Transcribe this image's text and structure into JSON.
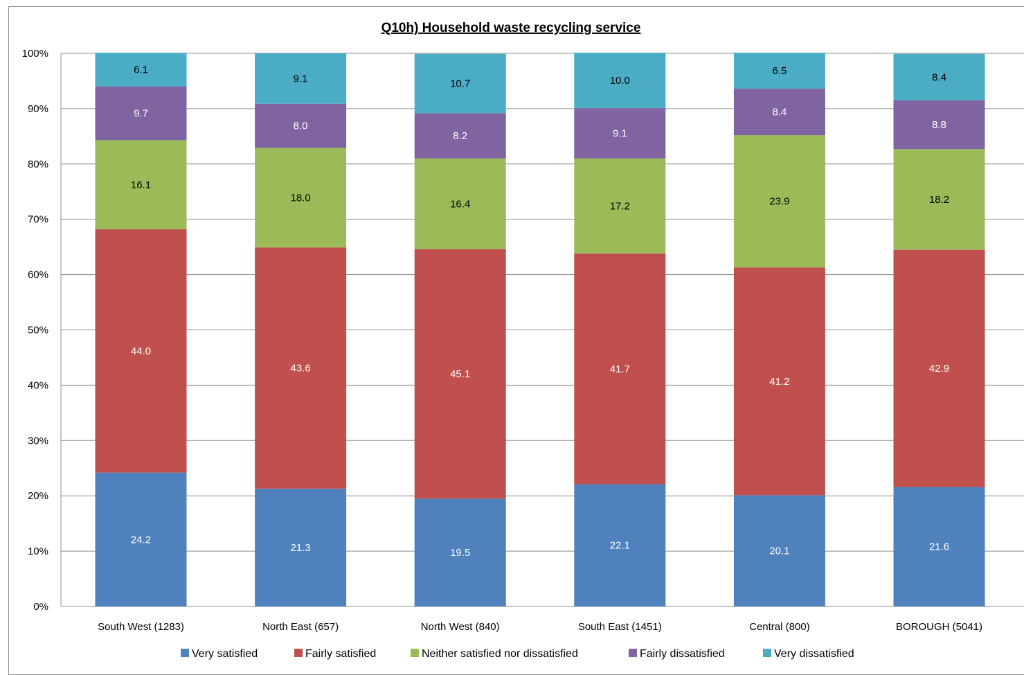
{
  "chart_data": {
    "type": "bar",
    "stacked": true,
    "title": "Q10h) Household waste recycling service",
    "xlabel": "",
    "ylabel": "",
    "ylim": [
      0,
      100
    ],
    "y_ticks": [
      "0%",
      "10%",
      "20%",
      "30%",
      "40%",
      "50%",
      "60%",
      "70%",
      "80%",
      "90%",
      "100%"
    ],
    "grid": true,
    "legend_position": "bottom",
    "categories": [
      "South West (1283)",
      "North East (657)",
      "North West (840)",
      "South East (1451)",
      "Central (800)",
      "BOROUGH (5041)"
    ],
    "series": [
      {
        "name": "Very satisfied",
        "color": "#4f81bd",
        "label_color": "#ffffff",
        "values": [
          24.2,
          21.3,
          19.5,
          22.1,
          20.1,
          21.6
        ]
      },
      {
        "name": "Fairly satisfied",
        "color": "#c0504d",
        "label_color": "#ffffff",
        "values": [
          44.0,
          43.6,
          45.1,
          41.7,
          41.2,
          42.9
        ]
      },
      {
        "name": "Neither satisfied nor dissatisfied",
        "color": "#9bbb59",
        "label_color": "#000000",
        "values": [
          16.1,
          18.0,
          16.4,
          17.2,
          23.9,
          18.2
        ]
      },
      {
        "name": "Fairly dissatisfied",
        "color": "#8064a2",
        "label_color": "#ffffff",
        "values": [
          9.7,
          8.0,
          8.2,
          9.1,
          8.4,
          8.8
        ]
      },
      {
        "name": "Very dissatisfied",
        "color": "#4bacc6",
        "label_color": "#000000",
        "values": [
          6.1,
          9.1,
          10.7,
          10.0,
          6.5,
          8.4
        ]
      }
    ],
    "value_labels": [
      [
        "24.2",
        "21.3",
        "19.5",
        "22.1",
        "20.1",
        "21.6"
      ],
      [
        "44.0",
        "43.6",
        "45.1",
        "41.7",
        "41.2",
        "42.9"
      ],
      [
        "16.1",
        "18.0",
        "16.4",
        "17.2",
        "23.9",
        "18.2"
      ],
      [
        "9.7",
        "8.0",
        "8.2",
        "9.1",
        "8.4",
        "8.8"
      ],
      [
        "6.1",
        "9.1",
        "10.7",
        "10.0",
        "6.5",
        "8.4"
      ]
    ]
  }
}
